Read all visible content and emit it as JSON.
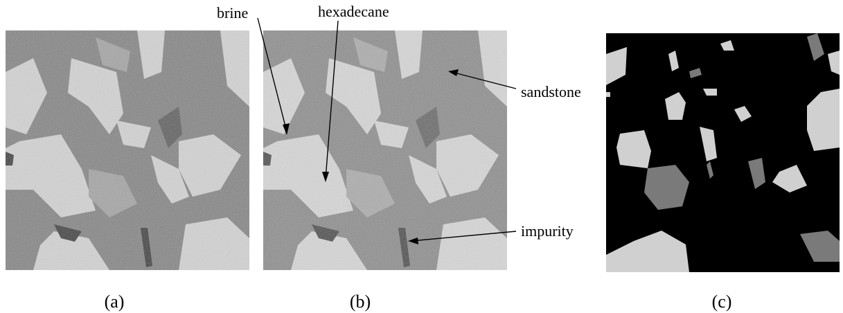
{
  "annotations": {
    "brine": "brine",
    "hexadecane": "hexadecane",
    "sandstone": "sandstone",
    "impurity": "impurity"
  },
  "panels": {
    "a": "(a)",
    "b": "(b)",
    "c": "(c)"
  }
}
